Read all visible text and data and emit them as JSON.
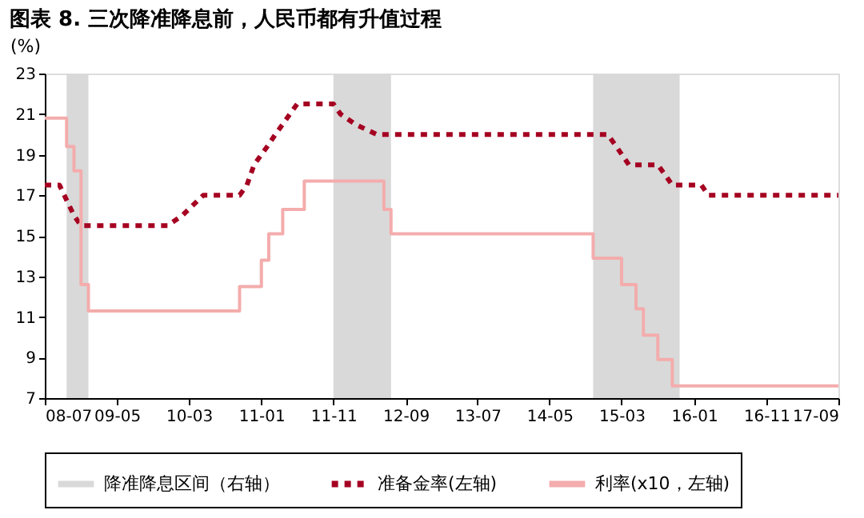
{
  "chart_data": {
    "type": "line",
    "title": "图表 8. 三次降准降息前，人民币都有升值过程",
    "ylabel": "(%)",
    "xlim": [
      "2008-07",
      "2017-09"
    ],
    "xticks": [
      {
        "value": "2008-07",
        "label": "08-07"
      },
      {
        "value": "2009-05",
        "label": "09-05"
      },
      {
        "value": "2010-03",
        "label": "10-03"
      },
      {
        "value": "2011-01",
        "label": "11-01"
      },
      {
        "value": "2011-11",
        "label": "11-11"
      },
      {
        "value": "2012-09",
        "label": "12-09"
      },
      {
        "value": "2013-07",
        "label": "13-07"
      },
      {
        "value": "2014-05",
        "label": "14-05"
      },
      {
        "value": "2015-03",
        "label": "15-03"
      },
      {
        "value": "2016-01",
        "label": "16-01"
      },
      {
        "value": "2016-11",
        "label": "16-11"
      },
      {
        "value": "2017-09",
        "label": "17-09"
      }
    ],
    "ylim": [
      7,
      23
    ],
    "yticks": [
      7,
      9,
      11,
      13,
      15,
      17,
      19,
      21,
      23
    ],
    "legend": "bottom",
    "marker": "none",
    "bands": [
      {
        "axis": "x",
        "from": "2008-10",
        "to": "2009-01",
        "label": "降准降息区间（右轴）",
        "color": "#d9d9d9"
      },
      {
        "axis": "x",
        "from": "2011-11",
        "to": "2012-07",
        "color": "#d9d9d9"
      },
      {
        "axis": "x",
        "from": "2014-11",
        "to": "2015-11",
        "color": "#d9d9d9"
      }
    ],
    "series": [
      {
        "name": "准备金率(左轴)",
        "color": "#a50021",
        "type": "line",
        "line_style": "dotted",
        "x": [
          "2008-07",
          "2008-09",
          "2008-11",
          "2008-12",
          "2009-12",
          "2010-02",
          "2010-05",
          "2010-10",
          "2010-11",
          "2010-12",
          "2011-01",
          "2011-02",
          "2011-03",
          "2011-04",
          "2011-05",
          "2011-06",
          "2011-11",
          "2011-12",
          "2012-02",
          "2012-05",
          "2015-01",
          "2015-02",
          "2015-04",
          "2015-08",
          "2015-09",
          "2015-10",
          "2016-02",
          "2016-03",
          "2017-09"
        ],
        "values": [
          17.5,
          17.5,
          16,
          15.5,
          15.5,
          16,
          17,
          17,
          17.5,
          18.5,
          19,
          19.5,
          20,
          20.5,
          21,
          21.5,
          21.5,
          21,
          20.5,
          20,
          20,
          19.5,
          18.5,
          18.5,
          18,
          17.5,
          17.5,
          17,
          17
        ]
      },
      {
        "name": "利率(x10，左轴)",
        "color": "#f4acac",
        "type": "step",
        "line_style": "solid",
        "x": [
          "2008-07",
          "2008-10",
          "2008-11",
          "2008-12",
          "2009-01",
          "2010-10",
          "2011-01",
          "2011-02",
          "2011-04",
          "2011-07",
          "2012-06",
          "2012-07",
          "2014-11",
          "2015-03",
          "2015-05",
          "2015-06",
          "2015-08",
          "2015-10",
          "2017-09"
        ],
        "values": [
          20.8,
          19.4,
          18.2,
          12.6,
          11.3,
          12.5,
          13.8,
          15.1,
          16.3,
          17.7,
          16.3,
          15.1,
          13.9,
          12.6,
          11.4,
          10.1,
          8.9,
          7.6,
          7.6
        ]
      }
    ]
  }
}
